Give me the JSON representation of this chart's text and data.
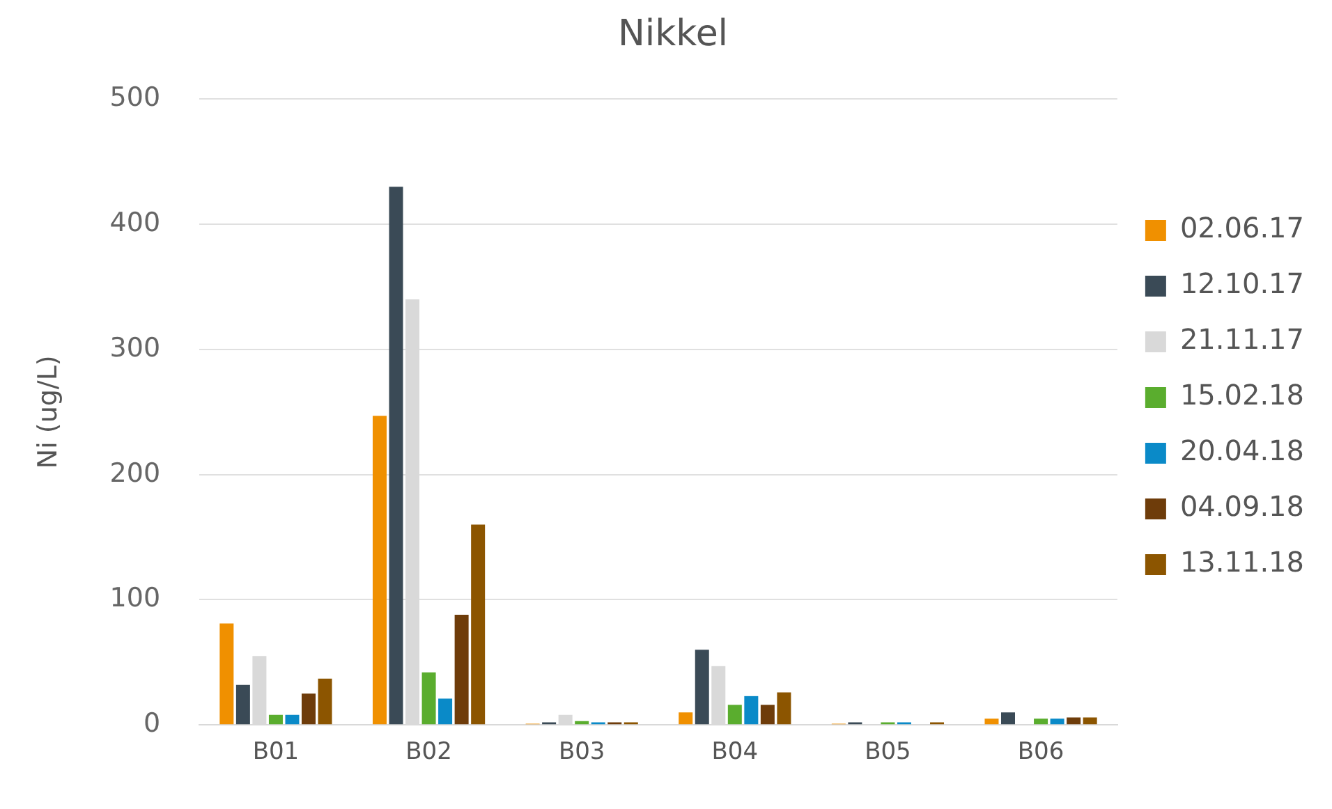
{
  "chart_data": {
    "type": "bar",
    "title": "Nikkel",
    "ylabel": "Ni (ug/L)",
    "categories": [
      "B01",
      "B02",
      "B03",
      "B04",
      "B05",
      "B06"
    ],
    "series": [
      {
        "name": "02.06.17",
        "color": "#f09000",
        "values": [
          81,
          247,
          1,
          10,
          1,
          5
        ]
      },
      {
        "name": "12.10.17",
        "color": "#3a4a56",
        "values": [
          32,
          430,
          2,
          60,
          2,
          10
        ]
      },
      {
        "name": "21.11.17",
        "color": "#d9d9d9",
        "values": [
          55,
          340,
          8,
          47,
          0,
          0
        ]
      },
      {
        "name": "15.02.18",
        "color": "#5aad2e",
        "values": [
          8,
          42,
          3,
          16,
          2,
          5
        ]
      },
      {
        "name": "20.04.18",
        "color": "#0a8ac8",
        "values": [
          8,
          21,
          2,
          23,
          2,
          5
        ]
      },
      {
        "name": "04.09.18",
        "color": "#6e3c0a",
        "values": [
          25,
          88,
          2,
          16,
          0,
          6
        ]
      },
      {
        "name": "13.11.18",
        "color": "#8c5500",
        "values": [
          37,
          160,
          2,
          26,
          2,
          6
        ]
      }
    ],
    "ylim": [
      0,
      500
    ],
    "yticks": [
      0,
      100,
      200,
      300,
      400,
      500
    ],
    "grid": "y",
    "legend": "right"
  }
}
